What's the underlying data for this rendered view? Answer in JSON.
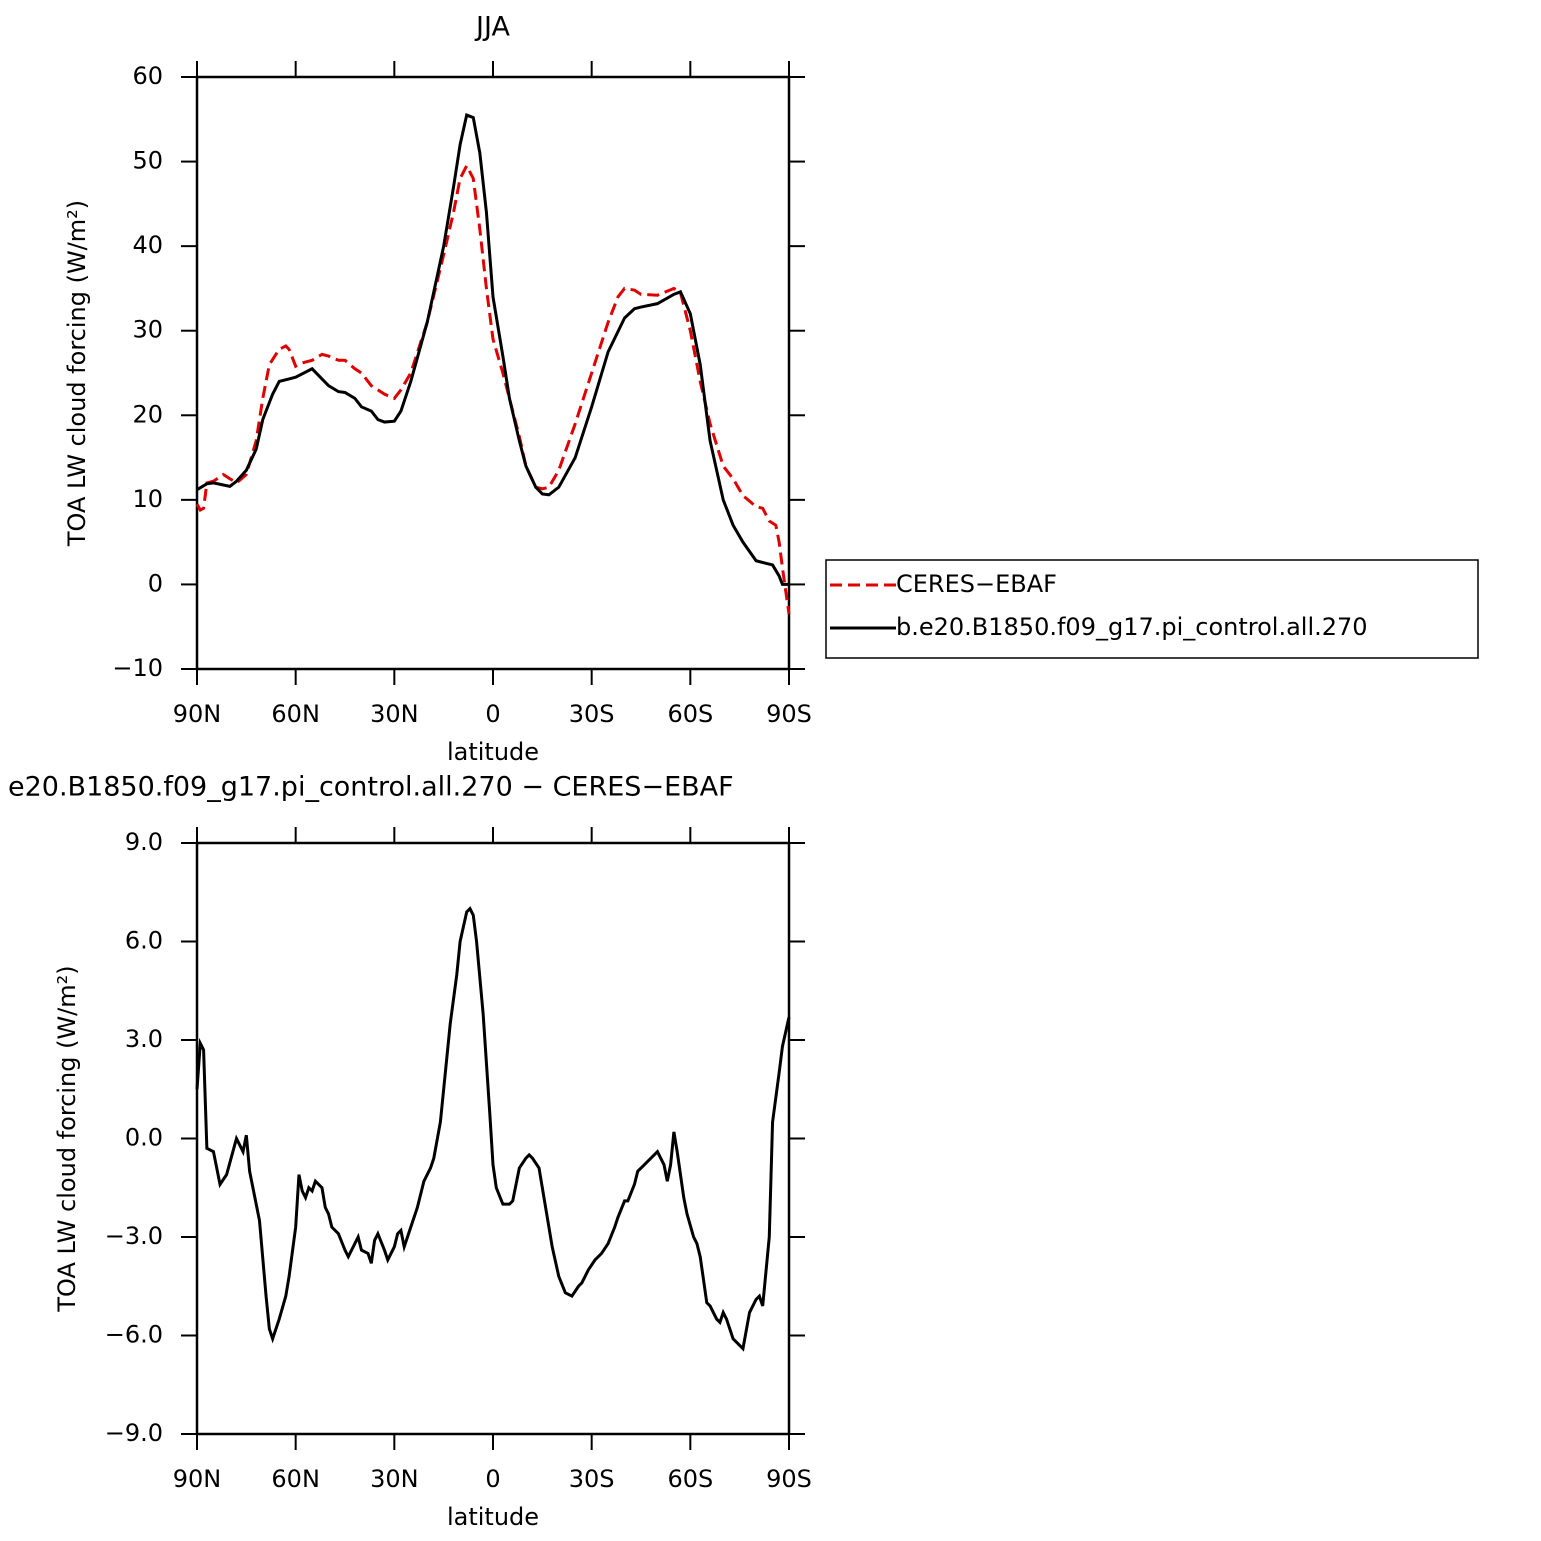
{
  "chart_data": [
    {
      "type": "line",
      "title": "JJA",
      "x_label": "latitude",
      "y_label": "TOA LW cloud forcing (W/m²)",
      "xlim": [
        90,
        -90
      ],
      "xticks": [
        {
          "value": 90,
          "label": "90N"
        },
        {
          "value": 60,
          "label": "60N"
        },
        {
          "value": 30,
          "label": "30N"
        },
        0,
        {
          "value": -30,
          "label": "30S"
        },
        {
          "value": -60,
          "label": "60S"
        },
        {
          "value": -90,
          "label": "90S"
        }
      ],
      "ylim": [
        -10,
        60
      ],
      "yticks": [
        {
          "value": -10,
          "label": "−10"
        },
        0,
        10,
        20,
        30,
        40,
        50,
        60
      ],
      "series": [
        {
          "name": "CERES−EBAF",
          "color": "#e00000",
          "line_style": "dashed",
          "x": [
            90,
            89,
            88,
            87,
            85,
            82,
            80,
            78,
            75,
            72,
            70,
            68,
            65,
            63,
            62,
            60,
            58,
            55,
            52,
            50,
            47,
            45,
            42,
            40,
            37,
            35,
            33,
            30,
            28,
            25,
            20,
            15,
            12,
            10,
            8,
            6,
            4,
            2,
            0,
            -3,
            -5,
            -8,
            -10,
            -13,
            -15,
            -17,
            -20,
            -25,
            -30,
            -35,
            -38,
            -40,
            -43,
            -45,
            -50,
            -55,
            -57,
            -60,
            -63,
            -66,
            -70,
            -73,
            -76,
            -80,
            -82,
            -84,
            -86,
            -87,
            -88,
            -90
          ],
          "values": [
            9.5,
            8.8,
            9,
            12,
            12.2,
            13,
            12.5,
            12,
            13,
            17,
            22,
            26,
            27.8,
            28.2,
            27.8,
            25.8,
            26.2,
            26.5,
            27.2,
            27,
            26.5,
            26.5,
            25.5,
            25,
            23.5,
            23,
            22.5,
            22,
            23,
            25,
            31,
            39,
            44,
            48,
            49.5,
            48,
            42,
            35,
            29,
            25,
            22,
            17.5,
            14,
            11.5,
            11.3,
            11.5,
            13.5,
            19,
            25,
            31,
            34,
            35,
            34.8,
            34.3,
            34.2,
            35,
            34.5,
            30,
            24,
            19,
            14,
            12.5,
            10.5,
            9.2,
            9,
            7.5,
            7,
            5,
            2,
            -3.5
          ]
        },
        {
          "name": "b.e20.B1850.f09_g17.pi_control.all.270",
          "color": "#000000",
          "line_style": "solid",
          "x": [
            90,
            87,
            85,
            80,
            78,
            75,
            72,
            70,
            67,
            65,
            62,
            60,
            55,
            52,
            50,
            47,
            45,
            42,
            40,
            37,
            35,
            33,
            30,
            28,
            25,
            20,
            15,
            12,
            10,
            8,
            6,
            4,
            2,
            0,
            -3,
            -5,
            -8,
            -10,
            -13,
            -15,
            -17,
            -20,
            -25,
            -30,
            -35,
            -40,
            -43,
            -45,
            -50,
            -55,
            -57,
            -60,
            -63,
            -66,
            -70,
            -73,
            -76,
            -80,
            -83,
            -85,
            -87,
            -88,
            -90
          ],
          "values": [
            11.2,
            11.9,
            12,
            11.6,
            12.2,
            13.5,
            16,
            19.5,
            22.5,
            24,
            24.3,
            24.5,
            25.5,
            24.3,
            23.5,
            22.8,
            22.7,
            22,
            21,
            20.5,
            19.5,
            19.2,
            19.3,
            20.5,
            24,
            31,
            40,
            47,
            52,
            55.5,
            55.2,
            51,
            44,
            34,
            27,
            22,
            17,
            14,
            11.5,
            10.7,
            10.6,
            11.5,
            15,
            21,
            27.5,
            31.5,
            32.6,
            32.8,
            33.2,
            34.3,
            34.6,
            32,
            26,
            17,
            10,
            7,
            5,
            2.8,
            2.5,
            2.3,
            1,
            0,
            0
          ]
        }
      ]
    },
    {
      "type": "line",
      "title": "e20.B1850.f09_g17.pi_control.all.270 − CERES−EBAF",
      "x_label": "latitude",
      "y_label": "TOA LW cloud forcing (W/m²)",
      "xlim": [
        90,
        -90
      ],
      "xticks": [
        {
          "value": 90,
          "label": "90N"
        },
        {
          "value": 60,
          "label": "60N"
        },
        {
          "value": 30,
          "label": "30N"
        },
        0,
        {
          "value": -30,
          "label": "30S"
        },
        {
          "value": -60,
          "label": "60S"
        },
        {
          "value": -90,
          "label": "90S"
        }
      ],
      "ylim": [
        -9,
        9
      ],
      "yticks": [
        {
          "value": -9,
          "label": "−9.0"
        },
        {
          "value": -6,
          "label": "−6.0"
        },
        {
          "value": -3,
          "label": "−3.0"
        },
        {
          "value": 0,
          "label": "0.0"
        },
        {
          "value": 3,
          "label": "3.0"
        },
        {
          "value": 6,
          "label": "6.0"
        },
        {
          "value": 9,
          "label": "9.0"
        }
      ],
      "series": [
        {
          "color": "#000000",
          "line_style": "solid",
          "x": [
            90,
            89,
            88,
            87,
            85,
            83,
            81,
            78,
            76,
            75,
            74,
            72,
            71,
            69,
            68,
            67,
            65,
            63,
            62,
            60,
            59,
            58,
            57,
            56,
            55,
            54,
            52,
            51,
            50,
            49,
            47,
            45,
            44,
            42,
            41,
            40,
            38,
            37,
            36,
            35,
            33,
            32,
            30,
            29,
            28,
            27,
            25,
            23,
            21,
            19,
            18,
            16,
            15,
            13,
            11,
            10,
            8,
            7,
            6,
            5,
            3,
            1,
            0,
            -1,
            -3,
            -5,
            -6,
            -8,
            -10,
            -11,
            -12,
            -14,
            -16,
            -18,
            -20,
            -22,
            -24,
            -26,
            -27,
            -29,
            -31,
            -33,
            -35,
            -37,
            -38,
            -40,
            -41,
            -43,
            -44,
            -46,
            -48,
            -49,
            -50,
            -52,
            -53,
            -54,
            -55,
            -56,
            -58,
            -59,
            -61,
            -62,
            -63,
            -65,
            -66,
            -68,
            -69,
            -70,
            -71,
            -73,
            -74,
            -76,
            -78,
            -80,
            -81,
            -82,
            -84,
            -85,
            -87,
            -88,
            -90
          ],
          "values": [
            1.5,
            2.9,
            2.7,
            -0.3,
            -0.4,
            -1.4,
            -1.1,
            0,
            -0.4,
            0.1,
            -1,
            -2,
            -2.5,
            -4.8,
            -5.8,
            -6.1,
            -5.5,
            -4.8,
            -4.2,
            -2.7,
            -1.1,
            -1.6,
            -1.8,
            -1.5,
            -1.6,
            -1.3,
            -1.5,
            -2.1,
            -2.3,
            -2.7,
            -2.9,
            -3.4,
            -3.6,
            -3.2,
            -3,
            -3.4,
            -3.5,
            -3.8,
            -3.1,
            -2.9,
            -3.4,
            -3.7,
            -3.3,
            -2.9,
            -2.8,
            -3.3,
            -2.7,
            -2.1,
            -1.3,
            -0.9,
            -0.6,
            0.5,
            1.5,
            3.5,
            5,
            6,
            6.9,
            7,
            6.8,
            6,
            3.8,
            0.8,
            -0.8,
            -1.5,
            -2,
            -2,
            -1.9,
            -0.9,
            -0.6,
            -0.5,
            -0.6,
            -0.9,
            -2.1,
            -3.3,
            -4.2,
            -4.7,
            -4.8,
            -4.5,
            -4.4,
            -4,
            -3.7,
            -3.5,
            -3.2,
            -2.7,
            -2.4,
            -1.9,
            -1.9,
            -1.4,
            -1,
            -0.8,
            -0.6,
            -0.5,
            -0.4,
            -0.8,
            -1.3,
            -0.8,
            0.2,
            -0.4,
            -1.8,
            -2.3,
            -3,
            -3.2,
            -3.6,
            -5,
            -5.1,
            -5.5,
            -5.6,
            -5.3,
            -5.5,
            -6.1,
            -6.2,
            -6.4,
            -5.3,
            -4.9,
            -4.8,
            -5.1,
            -3,
            0.5,
            2,
            2.8,
            3.7
          ]
        }
      ]
    }
  ]
}
